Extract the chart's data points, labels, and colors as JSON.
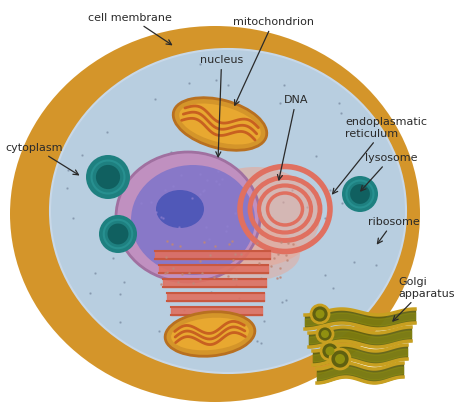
{
  "bg": "#ffffff",
  "gold_outer": "#D4952A",
  "gold_dark": "#B87820",
  "gold_light": "#E8B040",
  "cyto_fill": "#B8CEE0",
  "nuc_outer": "#C090C0",
  "nuc_inner": "#8878C8",
  "nucleolus": "#5058B8",
  "nuc_dots": "#9080D0",
  "er_salmon": "#E07060",
  "er_orange": "#C85840",
  "er_pink_bg": "#E8A898",
  "mito_outer": "#D4952A",
  "mito_edge": "#B87020",
  "mito_inner": "#E8A830",
  "mito_cristae": "#C86020",
  "golgi_bg": "#C8A020",
  "golgi_dark": "#606010",
  "golgi_mid": "#909010",
  "lyso_teal": "#1E8080",
  "lyso_dark": "#106060",
  "lyso_light": "#30A0A0",
  "lyso_ring": "#208898",
  "dot_color": "#7888A0",
  "label_color": "#2A2A2A",
  "arrow_color": "#2A2A2A",
  "labels": {
    "cell_membrane": "cell membrane",
    "cytoplasm": "cytoplasm",
    "mitochondrion": "mitochondrion",
    "nucleus": "nucleus",
    "dna": "DNA",
    "er": "endoplasmatic\nreticulum",
    "lysosome": "lysosome",
    "ribosome": "ribosome",
    "golgi": "Golgi\napparatus"
  }
}
